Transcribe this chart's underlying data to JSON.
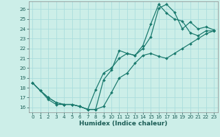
{
  "xlabel": "Humidex (Indice chaleur)",
  "bg_color": "#cceee8",
  "grid_color": "#aadddd",
  "line_color": "#1a7a6e",
  "marker": "D",
  "markersize": 2,
  "linewidth": 0.9,
  "xlim": [
    -0.5,
    23.5
  ],
  "ylim": [
    15.5,
    26.8
  ],
  "xticks": [
    0,
    1,
    2,
    3,
    4,
    5,
    6,
    7,
    8,
    9,
    10,
    11,
    12,
    13,
    14,
    15,
    16,
    17,
    18,
    19,
    20,
    21,
    22,
    23
  ],
  "yticks": [
    16,
    17,
    18,
    19,
    20,
    21,
    22,
    23,
    24,
    25,
    26
  ],
  "line1_x": [
    0,
    1,
    2,
    3,
    4,
    5,
    6,
    7,
    8,
    9,
    10,
    11,
    12,
    13,
    14,
    15,
    16,
    17,
    18,
    19,
    20,
    21,
    22,
    23
  ],
  "line1_y": [
    18.5,
    17.7,
    17.0,
    16.5,
    16.3,
    16.3,
    16.1,
    15.8,
    15.8,
    16.1,
    17.5,
    19.0,
    19.5,
    20.5,
    21.3,
    21.5,
    21.2,
    21.0,
    21.5,
    22.0,
    22.5,
    23.0,
    23.5,
    23.8
  ],
  "line2_x": [
    0,
    1,
    2,
    3,
    4,
    5,
    6,
    7,
    8,
    9,
    10,
    11,
    12,
    13,
    14,
    15,
    16,
    17,
    18,
    19,
    20,
    21,
    22,
    23
  ],
  "line2_y": [
    18.5,
    17.7,
    16.8,
    16.3,
    16.3,
    16.3,
    16.1,
    15.8,
    17.8,
    19.5,
    20.0,
    21.0,
    21.5,
    21.3,
    22.0,
    23.2,
    26.1,
    26.5,
    25.7,
    24.0,
    24.7,
    24.0,
    24.2,
    23.9
  ],
  "line3_x": [
    0,
    1,
    2,
    3,
    4,
    5,
    6,
    7,
    8,
    9,
    10,
    11,
    12,
    13,
    14,
    15,
    16,
    17,
    18,
    19,
    20,
    21,
    22,
    23
  ],
  "line3_y": [
    18.5,
    17.7,
    17.0,
    16.5,
    16.3,
    16.3,
    16.1,
    15.8,
    15.8,
    18.8,
    19.8,
    21.8,
    21.5,
    21.3,
    22.3,
    24.5,
    26.5,
    25.6,
    25.0,
    24.8,
    23.6,
    23.3,
    23.8,
    23.8
  ],
  "tick_color": "#1a5c55",
  "xlabel_fontsize": 6.5,
  "tick_fontsize": 5.2
}
